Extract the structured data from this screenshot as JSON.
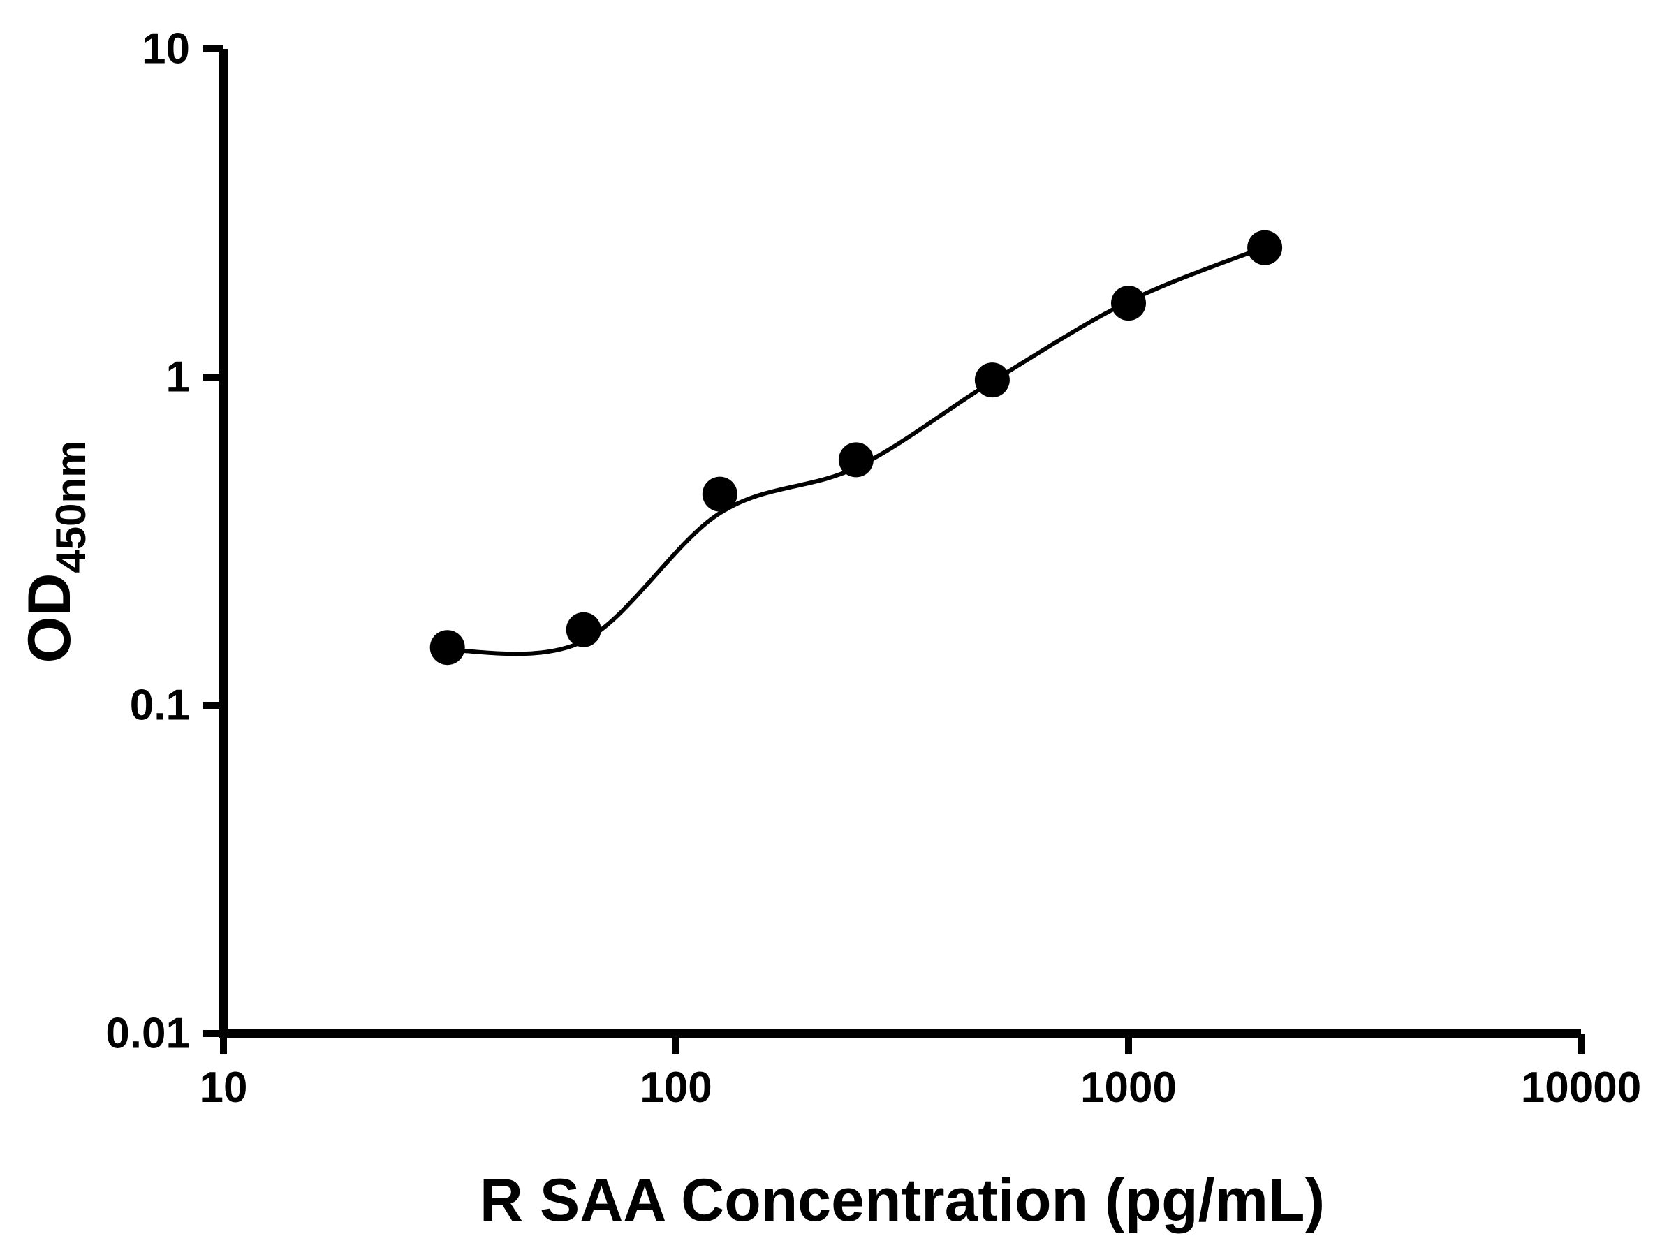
{
  "chart_data": {
    "type": "scatter",
    "xlabel": "R SAA Concentration (pg/mL)",
    "ylabel_main": "OD",
    "ylabel_sub": "450nm",
    "xscale": "log",
    "yscale": "log",
    "xlim": [
      10,
      10000
    ],
    "ylim": [
      0.01,
      10
    ],
    "x_tick_values": [
      10,
      100,
      1000,
      10000
    ],
    "x_tick_labels": [
      "10",
      "100",
      "1000",
      "10000"
    ],
    "y_tick_values": [
      0.01,
      0.1,
      1,
      10
    ],
    "y_tick_labels": [
      "0.01",
      "0.1",
      "1",
      "10"
    ],
    "grid": false,
    "legend": false,
    "marker_color": "#000000",
    "line_color": "#000000",
    "background_color": "#ffffff",
    "series": [
      {
        "x": [
          31.25,
          62.5,
          125,
          250,
          500,
          1000,
          2000
        ],
        "y": [
          0.15,
          0.17,
          0.44,
          0.56,
          0.98,
          1.68,
          2.48
        ]
      }
    ],
    "fit_curve": {
      "x": [
        31.25,
        62.5,
        125,
        250,
        500,
        1000,
        2000
      ],
      "y": [
        0.147,
        0.157,
        0.385,
        0.53,
        0.97,
        1.7,
        2.49
      ]
    }
  }
}
